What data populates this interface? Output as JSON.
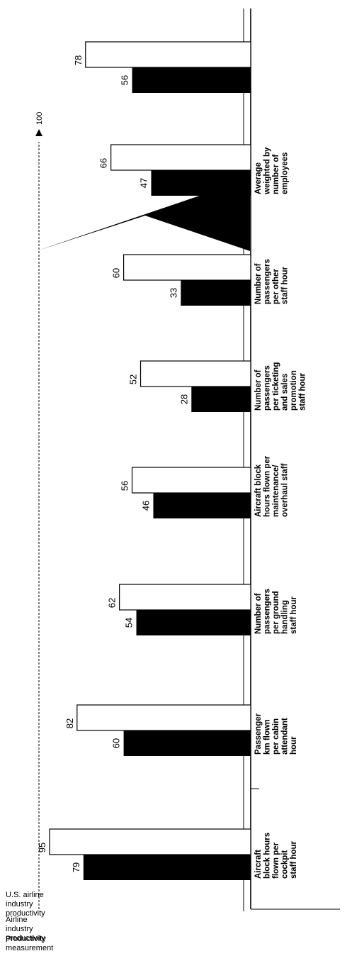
{
  "row_labels": {
    "us": [
      "U.S. airline",
      "industry",
      "productivity"
    ],
    "airline": [
      "Airline industry",
      "productivity"
    ],
    "measure": [
      "Productivity",
      "measurement"
    ]
  },
  "reference_label": "100",
  "chart_data": {
    "type": "bar",
    "orientation": "vertical-rotated",
    "categories": [
      [
        "Aircraft",
        "block hours",
        "flown per",
        "cockpit",
        "staff hour"
      ],
      [
        "Passenger",
        "km flown",
        "per cabin",
        "attendant",
        "hour"
      ],
      [
        "Number of",
        "passengers",
        "per ground",
        "handling",
        "staff hour"
      ],
      [
        "Aircraft block",
        "hours flown per",
        "maintenance/",
        "overhaul staff"
      ],
      [
        "Number of",
        "passengers",
        "per ticketing",
        "and sales",
        "promotion",
        "staff hour"
      ],
      [
        "Number of",
        "passengers",
        "per other",
        "staff hour"
      ],
      [
        "Average",
        "weighted by",
        "number of",
        "employees"
      ],
      []
    ],
    "series": [
      {
        "name": "U.S. airline industry productivity",
        "color": "#ffffff",
        "values": [
          95,
          82,
          62,
          56,
          52,
          60,
          66,
          78
        ]
      },
      {
        "name": "Airline industry productivity",
        "color": "#000000",
        "values": [
          79,
          60,
          54,
          46,
          28,
          33,
          47,
          56
        ]
      }
    ],
    "reference_value": 100,
    "ylim": [
      0,
      100
    ],
    "grid": false,
    "legend": "left"
  }
}
